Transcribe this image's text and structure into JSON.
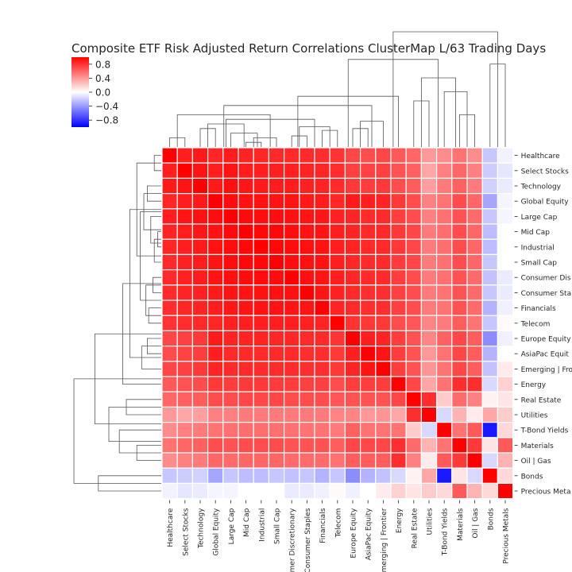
{
  "chart_data": {
    "type": "heatmap",
    "title": "Composite ETF Risk Adjusted Return Correlations ClusterMap L/63 Trading Days",
    "labels": [
      "Healthcare",
      "Select Stocks",
      "Technology",
      "Global Equity",
      "Large Cap",
      "Mid Cap",
      "Industrial",
      "Small Cap",
      "Consumer Discretionary",
      "Consumer Staples",
      "Financials",
      "Telecom",
      "Europe Equity",
      "AsiaPac Equity",
      "Emerging | Frontier",
      "Energy",
      "Real Estate",
      "Utilities",
      "T-Bond Yields",
      "Materials",
      "Oil | Gas",
      "Bonds",
      "Precious Metals"
    ],
    "values": [
      [
        1.0,
        0.88,
        0.9,
        0.85,
        0.89,
        0.86,
        0.85,
        0.84,
        0.84,
        0.83,
        0.82,
        0.8,
        0.72,
        0.7,
        0.72,
        0.65,
        0.6,
        0.4,
        0.45,
        0.55,
        0.45,
        -0.22,
        -0.05
      ],
      [
        0.88,
        1.0,
        0.92,
        0.88,
        0.92,
        0.89,
        0.88,
        0.87,
        0.87,
        0.86,
        0.85,
        0.82,
        0.75,
        0.74,
        0.75,
        0.68,
        0.62,
        0.35,
        0.5,
        0.6,
        0.5,
        -0.2,
        -0.1
      ],
      [
        0.9,
        0.92,
        1.0,
        0.9,
        0.94,
        0.91,
        0.9,
        0.89,
        0.89,
        0.87,
        0.86,
        0.84,
        0.78,
        0.76,
        0.78,
        0.7,
        0.64,
        0.38,
        0.52,
        0.62,
        0.52,
        -0.18,
        -0.08
      ],
      [
        0.85,
        0.88,
        0.9,
        1.0,
        0.95,
        0.93,
        0.93,
        0.92,
        0.92,
        0.9,
        0.89,
        0.85,
        0.9,
        0.88,
        0.86,
        0.78,
        0.7,
        0.5,
        0.55,
        0.7,
        0.6,
        -0.35,
        -0.04
      ],
      [
        0.89,
        0.92,
        0.94,
        0.95,
        1.0,
        0.96,
        0.95,
        0.95,
        0.94,
        0.92,
        0.91,
        0.87,
        0.86,
        0.84,
        0.84,
        0.76,
        0.7,
        0.5,
        0.56,
        0.68,
        0.58,
        -0.22,
        -0.04
      ],
      [
        0.86,
        0.89,
        0.91,
        0.93,
        0.96,
        1.0,
        0.97,
        0.97,
        0.95,
        0.93,
        0.92,
        0.88,
        0.86,
        0.84,
        0.84,
        0.78,
        0.72,
        0.52,
        0.57,
        0.7,
        0.6,
        -0.26,
        0.0
      ],
      [
        0.85,
        0.88,
        0.9,
        0.93,
        0.95,
        0.97,
        1.0,
        0.97,
        0.95,
        0.94,
        0.93,
        0.88,
        0.86,
        0.84,
        0.84,
        0.78,
        0.72,
        0.52,
        0.57,
        0.7,
        0.6,
        -0.26,
        0.0
      ],
      [
        0.84,
        0.87,
        0.89,
        0.92,
        0.95,
        0.97,
        0.97,
        1.0,
        0.95,
        0.94,
        0.93,
        0.88,
        0.85,
        0.83,
        0.83,
        0.77,
        0.72,
        0.52,
        0.56,
        0.7,
        0.6,
        -0.22,
        0.0
      ],
      [
        0.84,
        0.87,
        0.89,
        0.92,
        0.94,
        0.95,
        0.95,
        0.95,
        1.0,
        0.94,
        0.92,
        0.88,
        0.85,
        0.83,
        0.83,
        0.76,
        0.7,
        0.52,
        0.56,
        0.68,
        0.58,
        -0.24,
        -0.08
      ],
      [
        0.83,
        0.86,
        0.87,
        0.9,
        0.92,
        0.93,
        0.94,
        0.94,
        0.94,
        1.0,
        0.92,
        0.87,
        0.84,
        0.82,
        0.82,
        0.75,
        0.7,
        0.52,
        0.55,
        0.68,
        0.58,
        -0.22,
        -0.08
      ],
      [
        0.82,
        0.85,
        0.86,
        0.89,
        0.91,
        0.92,
        0.93,
        0.93,
        0.92,
        0.92,
        1.0,
        0.86,
        0.84,
        0.82,
        0.82,
        0.75,
        0.7,
        0.52,
        0.55,
        0.68,
        0.58,
        -0.3,
        -0.06
      ],
      [
        0.8,
        0.82,
        0.84,
        0.85,
        0.87,
        0.88,
        0.88,
        0.88,
        0.88,
        0.87,
        0.86,
        1.0,
        0.8,
        0.78,
        0.78,
        0.7,
        0.66,
        0.48,
        0.52,
        0.64,
        0.55,
        -0.22,
        0.02
      ],
      [
        0.72,
        0.75,
        0.78,
        0.9,
        0.86,
        0.86,
        0.86,
        0.85,
        0.85,
        0.84,
        0.84,
        0.8,
        1.0,
        0.88,
        0.86,
        0.76,
        0.68,
        0.48,
        0.62,
        0.72,
        0.64,
        -0.45,
        -0.06
      ],
      [
        0.7,
        0.74,
        0.76,
        0.88,
        0.84,
        0.84,
        0.84,
        0.83,
        0.83,
        0.82,
        0.82,
        0.78,
        0.88,
        1.0,
        0.92,
        0.76,
        0.68,
        0.4,
        0.55,
        0.72,
        0.64,
        -0.3,
        0.0
      ],
      [
        0.72,
        0.75,
        0.78,
        0.86,
        0.84,
        0.84,
        0.84,
        0.83,
        0.83,
        0.82,
        0.82,
        0.78,
        0.86,
        0.92,
        1.0,
        0.76,
        0.68,
        0.42,
        0.55,
        0.72,
        0.64,
        -0.24,
        0.08
      ],
      [
        0.65,
        0.68,
        0.7,
        0.78,
        0.76,
        0.78,
        0.78,
        0.77,
        0.76,
        0.75,
        0.75,
        0.7,
        0.76,
        0.76,
        0.76,
        1.0,
        0.72,
        0.35,
        0.55,
        0.82,
        0.82,
        -0.15,
        0.18
      ],
      [
        0.6,
        0.62,
        0.64,
        0.7,
        0.7,
        0.72,
        0.72,
        0.72,
        0.7,
        0.7,
        0.7,
        0.66,
        0.68,
        0.68,
        0.68,
        0.72,
        1.0,
        0.82,
        0.2,
        0.58,
        0.5,
        0.05,
        0.1
      ],
      [
        0.4,
        0.35,
        0.38,
        0.5,
        0.5,
        0.52,
        0.52,
        0.52,
        0.52,
        0.52,
        0.52,
        0.48,
        0.48,
        0.4,
        0.42,
        0.35,
        0.82,
        1.0,
        -0.15,
        0.3,
        0.08,
        0.35,
        0.2
      ],
      [
        0.45,
        0.5,
        0.52,
        0.55,
        0.56,
        0.57,
        0.57,
        0.56,
        0.56,
        0.55,
        0.55,
        0.52,
        0.62,
        0.55,
        0.55,
        0.55,
        0.2,
        -0.15,
        1.0,
        0.55,
        0.65,
        -0.9,
        0.15
      ],
      [
        0.55,
        0.6,
        0.62,
        0.7,
        0.68,
        0.7,
        0.7,
        0.7,
        0.68,
        0.68,
        0.68,
        0.64,
        0.72,
        0.72,
        0.72,
        0.82,
        0.58,
        0.3,
        0.55,
        1.0,
        0.78,
        0.1,
        0.65
      ],
      [
        0.45,
        0.5,
        0.52,
        0.6,
        0.58,
        0.6,
        0.6,
        0.6,
        0.58,
        0.58,
        0.58,
        0.55,
        0.64,
        0.64,
        0.64,
        0.82,
        0.5,
        0.08,
        0.65,
        0.78,
        1.0,
        -0.15,
        0.3
      ],
      [
        -0.22,
        -0.2,
        -0.18,
        -0.35,
        -0.22,
        -0.26,
        -0.26,
        -0.22,
        -0.24,
        -0.22,
        -0.3,
        -0.22,
        -0.45,
        -0.3,
        -0.24,
        -0.15,
        0.05,
        0.35,
        -0.9,
        0.1,
        -0.15,
        1.0,
        0.15
      ],
      [
        -0.05,
        -0.1,
        -0.08,
        -0.04,
        -0.04,
        0.0,
        0.0,
        0.0,
        -0.08,
        -0.08,
        -0.06,
        0.02,
        -0.06,
        0.0,
        0.08,
        0.18,
        0.1,
        0.2,
        0.15,
        0.65,
        0.3,
        0.15,
        1.0
      ]
    ],
    "vmin": -1,
    "vmax": 1,
    "colormap": "bwr",
    "colorbar_ticks": [
      0.8,
      0.4,
      0.0,
      -0.4,
      -0.8
    ],
    "colorbar_tick_labels": [
      "0.8",
      "0.4",
      "0.0",
      "−0.4",
      "−0.8"
    ],
    "row_labels_shown": [
      "Healthcare",
      "Select Stocks",
      "Technology",
      "Global Equity",
      "Large Cap",
      "Mid Cap",
      "Industrial",
      "Small Cap",
      "Consumer Dis",
      "Consumer Sta",
      "Financials",
      "Telecom",
      "Europe Equity",
      "AsiaPac Equit",
      "Emerging | Fro",
      "Energy",
      "Real Estate",
      "Utilities",
      "T-Bond Yields",
      "Materials",
      "Oil | Gas",
      "Bonds",
      "Precious Meta"
    ],
    "col_labels_shown": [
      "Healthcare",
      "Select Stocks",
      "Technology",
      "Global Equity",
      "Large Cap",
      "Mid Cap",
      "Industrial",
      "Small Cap",
      "mer Discretionary",
      "Consumer Staples",
      "Financials",
      "Telecom",
      "Europe Equity",
      "AsiaPac Equity",
      "merging | Frontier",
      "Energy",
      "Real Estate",
      "Utilities",
      "T-Bond Yields",
      "Materials",
      "Oil | Gas",
      "Bonds",
      "Precious Metals"
    ]
  }
}
